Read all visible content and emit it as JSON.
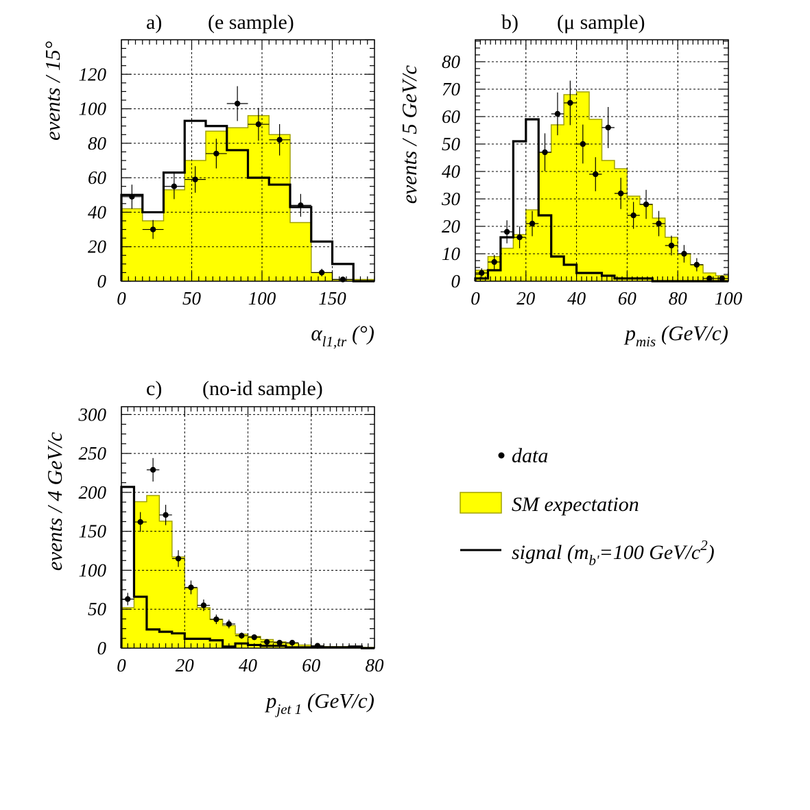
{
  "colors": {
    "sm_fill": "#ffff00",
    "sm_line": "#a0a000",
    "signal": "#000000",
    "data": "#000000",
    "grid": "#000000"
  },
  "legend": {
    "data_label": "data",
    "sm_label": "SM expectation",
    "signal_label": "signal (m",
    "signal_sub": "b'",
    "signal_mid": "=100 GeV/c",
    "signal_sup": "2",
    "signal_end": ")"
  },
  "chart_data": [
    {
      "type": "histogram",
      "panel": "a)",
      "title": "(e sample)",
      "xlabel": "α",
      "xlabel_sub": "l1,tr",
      "xlabel_unit": " (°)",
      "ylabel": "events / 15°",
      "xlim": [
        0,
        180
      ],
      "ylim": [
        0,
        140
      ],
      "xticks": [
        0,
        50,
        100,
        150
      ],
      "yticks": [
        0,
        20,
        40,
        60,
        80,
        100,
        120
      ],
      "bin_edges": [
        0,
        15,
        30,
        45,
        60,
        75,
        90,
        105,
        120,
        135,
        150,
        165,
        180
      ],
      "sm_expectation": [
        42,
        35,
        53,
        70,
        87,
        89,
        96,
        85,
        34,
        5,
        1,
        1
      ],
      "signal": [
        50,
        40,
        63,
        93,
        90,
        76,
        60,
        56,
        43,
        23,
        10,
        0
      ],
      "data": {
        "x": [
          7.5,
          22.5,
          37.5,
          52.5,
          67.5,
          82.5,
          97.5,
          112.5,
          127.5,
          142.5,
          157.5
        ],
        "y": [
          49,
          30,
          55,
          59,
          74,
          103,
          91,
          82,
          44,
          5,
          1
        ],
        "err": [
          7,
          5.5,
          7.4,
          7.7,
          8.6,
          10.1,
          9.5,
          9.1,
          6.6,
          2.2,
          1
        ]
      }
    },
    {
      "type": "histogram",
      "panel": "b)",
      "title": "(μ sample)",
      "xlabel": "p",
      "xlabel_sub": "mis",
      "xlabel_unit": " (GeV/c)",
      "ylabel": "events / 5 GeV/c",
      "xlim": [
        0,
        100
      ],
      "ylim": [
        0,
        88
      ],
      "xticks": [
        0,
        20,
        40,
        60,
        80,
        100
      ],
      "yticks": [
        0,
        10,
        20,
        30,
        40,
        50,
        60,
        70,
        80
      ],
      "bin_edges": [
        0,
        5,
        10,
        15,
        20,
        25,
        30,
        35,
        40,
        45,
        50,
        55,
        60,
        65,
        70,
        75,
        80,
        85,
        90,
        95,
        100
      ],
      "sm_expectation": [
        4,
        9,
        12,
        17,
        26,
        47,
        57,
        68,
        69,
        59,
        44,
        41,
        31,
        28,
        23,
        16,
        10,
        6,
        3,
        2
      ],
      "signal": [
        1,
        4,
        16,
        51,
        59,
        24,
        9,
        6,
        3,
        3,
        2,
        1,
        1,
        1,
        0,
        0,
        0,
        0,
        0,
        0
      ],
      "data": {
        "x": [
          2.5,
          7.5,
          12.5,
          17.5,
          22.5,
          27.5,
          32.5,
          37.5,
          42.5,
          47.5,
          52.5,
          57.5,
          62.5,
          67.5,
          72.5,
          77.5,
          82.5,
          87.5,
          92.5,
          97.5
        ],
        "y": [
          3,
          7,
          18,
          16,
          21,
          47,
          61,
          65,
          50,
          39,
          56,
          32,
          24,
          28,
          21,
          13,
          10,
          6,
          1,
          1
        ],
        "err": [
          1.7,
          2.6,
          4.2,
          4,
          4.6,
          6.9,
          7.8,
          8.1,
          7.1,
          6.2,
          7.5,
          5.7,
          4.9,
          5.3,
          4.6,
          3.6,
          3.2,
          2.4,
          1,
          1
        ]
      }
    },
    {
      "type": "histogram",
      "panel": "c)",
      "title": "(no-id sample)",
      "xlabel": "p",
      "xlabel_sub": "jet 1",
      "xlabel_unit": " (GeV/c)",
      "ylabel": "events / 4 GeV/c",
      "xlim": [
        0,
        80
      ],
      "ylim": [
        0,
        310
      ],
      "xticks": [
        0,
        20,
        40,
        60,
        80
      ],
      "yticks": [
        0,
        50,
        100,
        150,
        200,
        250,
        300
      ],
      "bin_edges": [
        0,
        4,
        8,
        12,
        16,
        20,
        24,
        28,
        32,
        36,
        40,
        44,
        48,
        52,
        56,
        60,
        64,
        68,
        72,
        76,
        80
      ],
      "sm_expectation": [
        52,
        188,
        196,
        163,
        117,
        77,
        52,
        37,
        29,
        18,
        15,
        11,
        8,
        6,
        4,
        3,
        2,
        2,
        2,
        1
      ],
      "signal": [
        207,
        66,
        24,
        21,
        19,
        12,
        12,
        10,
        2,
        6,
        4,
        3,
        3,
        1,
        1,
        1,
        1,
        1,
        2,
        0
      ],
      "data": {
        "x": [
          2,
          6,
          10,
          14,
          18,
          22,
          26,
          30,
          34,
          38,
          42,
          46,
          50,
          54,
          62
        ],
        "y": [
          63,
          162,
          229,
          171,
          115,
          78,
          55,
          37,
          31,
          16,
          14,
          8,
          7,
          7,
          3
        ],
        "err": [
          8,
          12.7,
          15.1,
          13.1,
          10.7,
          8.8,
          7.4,
          6.1,
          5.6,
          4,
          3.7,
          2.8,
          2.6,
          2.6,
          1.7
        ]
      }
    }
  ]
}
